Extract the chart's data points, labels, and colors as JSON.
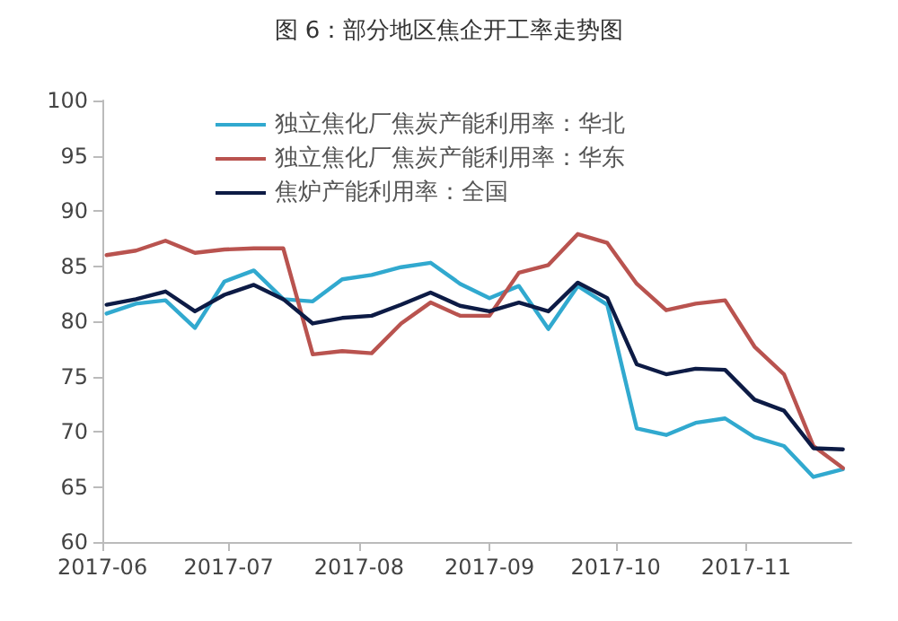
{
  "chart_data": {
    "type": "line",
    "title": "图 6：部分地区焦企开工率走势图",
    "x": [
      "2017-06-02",
      "2017-06-09",
      "2017-06-16",
      "2017-06-23",
      "2017-06-30",
      "2017-07-07",
      "2017-07-14",
      "2017-07-21",
      "2017-07-28",
      "2017-08-04",
      "2017-08-11",
      "2017-08-18",
      "2017-08-25",
      "2017-09-01",
      "2017-09-08",
      "2017-09-15",
      "2017-09-22",
      "2017-09-29",
      "2017-10-06",
      "2017-10-13",
      "2017-10-20",
      "2017-10-27",
      "2017-11-03",
      "2017-11-10",
      "2017-11-17",
      "2017-11-24"
    ],
    "series": [
      {
        "name": "独立焦化厂焦炭产能利用率：华北",
        "color": "#31a9cf",
        "values": [
          80.7,
          81.6,
          81.9,
          79.4,
          83.6,
          84.6,
          82.0,
          81.8,
          83.8,
          84.2,
          84.9,
          85.3,
          83.4,
          82.1,
          83.2,
          79.3,
          83.2,
          81.5,
          70.3,
          69.7,
          70.8,
          71.2,
          69.5,
          68.7,
          65.9,
          66.6
        ]
      },
      {
        "name": "独立焦化厂焦炭产能利用率：华东",
        "color": "#b9534f",
        "values": [
          86.0,
          86.4,
          87.3,
          86.2,
          86.5,
          86.6,
          86.6,
          77.0,
          77.3,
          77.1,
          79.8,
          81.7,
          80.5,
          80.5,
          84.4,
          85.1,
          87.9,
          87.1,
          83.4,
          81.0,
          81.6,
          81.9,
          77.7,
          75.2,
          68.7,
          66.7
        ]
      },
      {
        "name": "焦炉产能利用率：全国",
        "color": "#0d1b45",
        "values": [
          81.5,
          82.0,
          82.7,
          80.9,
          82.4,
          83.3,
          82.0,
          79.8,
          80.3,
          80.5,
          81.5,
          82.6,
          81.4,
          80.9,
          81.7,
          80.9,
          83.5,
          82.1,
          76.1,
          75.2,
          75.7,
          75.6,
          72.9,
          71.9,
          68.5,
          68.4
        ]
      }
    ],
    "xlim": [
      "2017-06-01",
      "2017-11-26"
    ],
    "xticks": [
      "2017-06",
      "2017-07",
      "2017-08",
      "2017-09",
      "2017-10",
      "2017-11"
    ],
    "ylim": [
      60,
      100
    ],
    "yticks": [
      60,
      65,
      70,
      75,
      80,
      85,
      90,
      95,
      100
    ],
    "grid": false,
    "legend": "top left",
    "marker": "none",
    "line_style": "solid"
  }
}
